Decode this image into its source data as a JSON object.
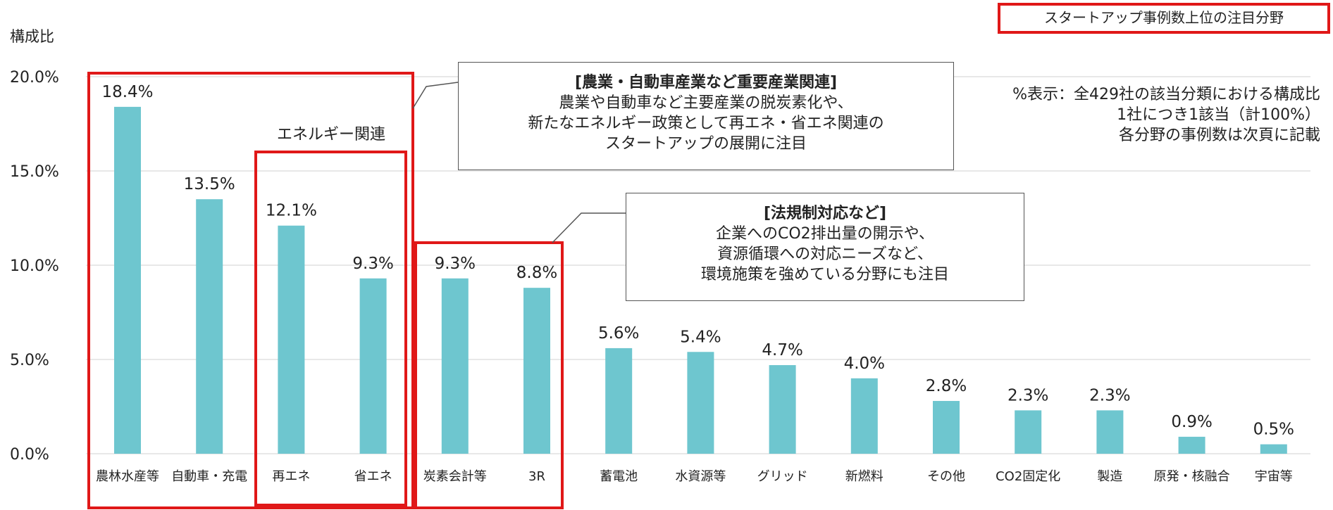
{
  "badge": "スタートアップ事例数上位の注目分野",
  "note": {
    "line1": "%表示：全429社の該当分類における構成比",
    "line2": "1社につき1該当（計100%）",
    "line3": "各分野の事例数は次頁に記載"
  },
  "callouts": [
    {
      "title": "[農業・自動車産業など重要産業関連]",
      "lines": [
        "農業や自動車など主要産業の脱炭素化や、",
        "新たなエネルギー政策として再エネ・省エネ関連の",
        "スタートアップの展開に注目"
      ]
    },
    {
      "title": "[法規制対応など]",
      "lines": [
        "企業へのCO2排出量の開示や、",
        "資源循環への対応ニーズなど、",
        "環境施策を強めている分野にも注目"
      ]
    }
  ],
  "groups": {
    "energy_label": "エネルギー関連"
  },
  "colors": {
    "bar": "#6ec6cf",
    "highlight": "#e01818",
    "grid": "#d9d9d9"
  },
  "chart_data": {
    "type": "bar",
    "title": "",
    "ylabel": "構成比",
    "xlabel": "",
    "ylim": [
      0,
      20
    ],
    "yticks": [
      "0.0%",
      "5.0%",
      "10.0%",
      "15.0%",
      "20.0%"
    ],
    "grid": true,
    "categories": [
      "農林水産等",
      "自動車・充電",
      "再エネ",
      "省エネ",
      "炭素会計等",
      "3R",
      "蓄電池",
      "水資源等",
      "グリッド",
      "新燃料",
      "その他",
      "CO2固定化",
      "製造",
      "原発・核融合",
      "宇宙等"
    ],
    "values": [
      18.4,
      13.5,
      12.1,
      9.3,
      9.3,
      8.8,
      5.6,
      5.4,
      4.7,
      4.0,
      2.8,
      2.3,
      2.3,
      0.9,
      0.5
    ],
    "data_labels": [
      "18.4%",
      "13.5%",
      "12.1%",
      "9.3%",
      "9.3%",
      "8.8%",
      "5.6%",
      "5.4%",
      "4.7%",
      "4.0%",
      "2.8%",
      "2.3%",
      "2.3%",
      "0.9%",
      "0.5%"
    ]
  }
}
